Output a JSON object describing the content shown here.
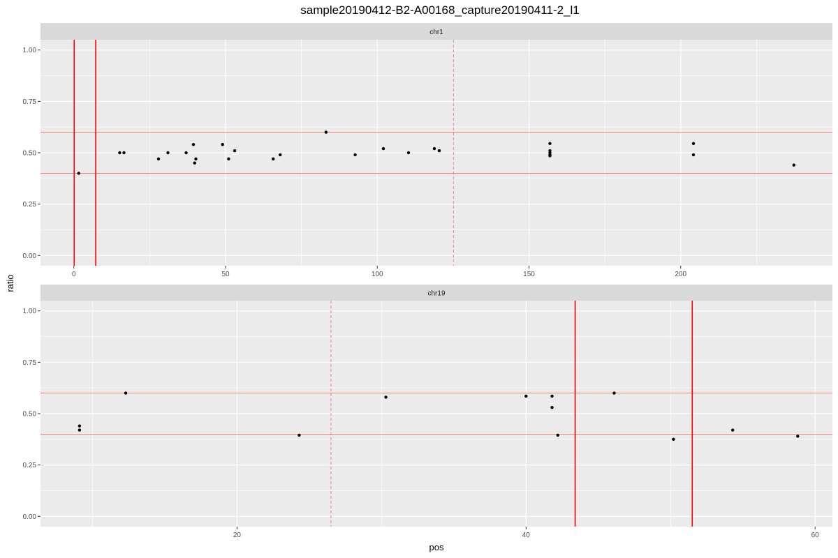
{
  "chart_data": {
    "type": "scatter",
    "title": "sample20190412-B2-A00168_capture20190411-2_l1",
    "xlabel": "pos",
    "ylabel": "ratio",
    "colors": {
      "panel_bg": "#ebebeb",
      "strip_bg": "#d9d9d9",
      "grid": "#ffffff",
      "point": "#000000",
      "threshold_line": "#f08080",
      "vline_solid": "#ff0000",
      "vline_dashed": "#f08080"
    },
    "hlines": [
      0.4,
      0.6
    ],
    "panels": [
      {
        "name": "chr1",
        "xlim": [
          -11,
          250
        ],
        "ylim": [
          -0.05,
          1.05
        ],
        "x_ticks": [
          0,
          50,
          100,
          150,
          200
        ],
        "x_tick_labels": [
          "0",
          "50",
          "100",
          "150",
          "200"
        ],
        "y_ticks": [
          0,
          0.25,
          0.5,
          0.75,
          1.0
        ],
        "y_tick_labels": [
          "0.00",
          "0.25",
          "0.50",
          "0.75",
          "1.00"
        ],
        "vlines_solid": [
          0.1,
          7.2
        ],
        "vlines_dashed": [
          125.1
        ],
        "points": [
          {
            "x": 1.6,
            "y": 0.4
          },
          {
            "x": 15.1,
            "y": 0.5
          },
          {
            "x": 16.5,
            "y": 0.5
          },
          {
            "x": 27.9,
            "y": 0.47
          },
          {
            "x": 31.0,
            "y": 0.5
          },
          {
            "x": 37.0,
            "y": 0.5
          },
          {
            "x": 39.4,
            "y": 0.54
          },
          {
            "x": 40.2,
            "y": 0.47
          },
          {
            "x": 39.8,
            "y": 0.45
          },
          {
            "x": 49.0,
            "y": 0.54
          },
          {
            "x": 51.0,
            "y": 0.47
          },
          {
            "x": 53.0,
            "y": 0.51
          },
          {
            "x": 65.7,
            "y": 0.47
          },
          {
            "x": 68.0,
            "y": 0.49
          },
          {
            "x": 83.1,
            "y": 0.6
          },
          {
            "x": 92.7,
            "y": 0.49
          },
          {
            "x": 102.0,
            "y": 0.52
          },
          {
            "x": 110.3,
            "y": 0.5
          },
          {
            "x": 118.8,
            "y": 0.52
          },
          {
            "x": 120.4,
            "y": 0.51
          },
          {
            "x": 156.9,
            "y": 0.545
          },
          {
            "x": 156.9,
            "y": 0.51
          },
          {
            "x": 156.9,
            "y": 0.5
          },
          {
            "x": 156.9,
            "y": 0.49
          },
          {
            "x": 156.9,
            "y": 0.485
          },
          {
            "x": 204.2,
            "y": 0.545
          },
          {
            "x": 204.2,
            "y": 0.49
          },
          {
            "x": 237.3,
            "y": 0.44
          }
        ]
      },
      {
        "name": "chr19",
        "xlim": [
          6.4,
          61.2
        ],
        "ylim": [
          -0.05,
          1.05
        ],
        "x_ticks": [
          20,
          40,
          60
        ],
        "x_tick_labels": [
          "20",
          "40",
          "60"
        ],
        "y_ticks": [
          0,
          0.25,
          0.5,
          0.75,
          1.0
        ],
        "y_tick_labels": [
          "0.00",
          "0.25",
          "0.50",
          "0.75",
          "1.00"
        ],
        "vlines_solid": [
          43.4,
          51.5
        ],
        "vlines_dashed": [
          26.5
        ],
        "points": [
          {
            "x": 9.1,
            "y": 0.44
          },
          {
            "x": 9.1,
            "y": 0.42
          },
          {
            "x": 12.3,
            "y": 0.6
          },
          {
            "x": 24.3,
            "y": 0.395
          },
          {
            "x": 30.3,
            "y": 0.58
          },
          {
            "x": 40.0,
            "y": 0.585
          },
          {
            "x": 41.8,
            "y": 0.585
          },
          {
            "x": 41.8,
            "y": 0.53
          },
          {
            "x": 42.2,
            "y": 0.395
          },
          {
            "x": 46.1,
            "y": 0.6
          },
          {
            "x": 50.2,
            "y": 0.375
          },
          {
            "x": 54.3,
            "y": 0.42
          },
          {
            "x": 58.8,
            "y": 0.39
          }
        ]
      }
    ]
  }
}
